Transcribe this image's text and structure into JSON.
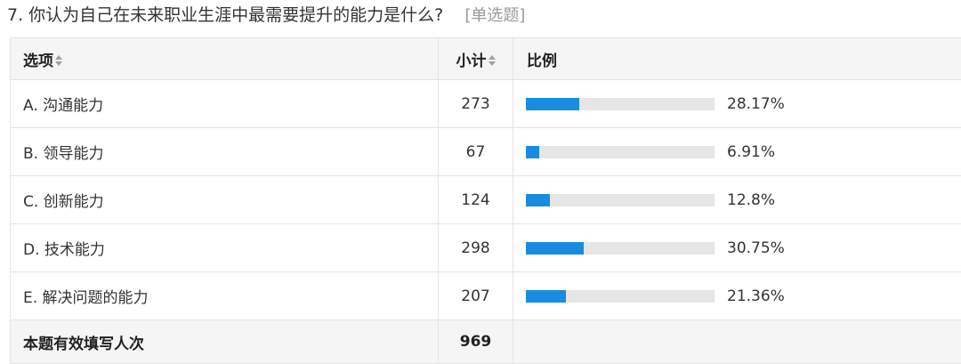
{
  "question": {
    "title": "7. 你认为自己在未来职业生涯中最需要提升的能力是什么?",
    "type_label": "[单选题]"
  },
  "table": {
    "headers": {
      "option": "选项",
      "count": "小计",
      "ratio": "比例"
    },
    "rows": [
      {
        "option": "A. 沟通能力",
        "count": "273",
        "percent": "28.17%",
        "fraction": 0.2817
      },
      {
        "option": "B. 领导能力",
        "count": "67",
        "percent": "6.91%",
        "fraction": 0.0691
      },
      {
        "option": "C. 创新能力",
        "count": "124",
        "percent": "12.8%",
        "fraction": 0.128
      },
      {
        "option": "D. 技术能力",
        "count": "298",
        "percent": "30.75%",
        "fraction": 0.3075
      },
      {
        "option": "E. 解决问题的能力",
        "count": "207",
        "percent": "21.36%",
        "fraction": 0.2136
      }
    ],
    "footer": {
      "label": "本题有效填写人次",
      "total": "969"
    }
  },
  "colors": {
    "bar_fill": "#1a8ce0",
    "bar_track": "#e6e6e6",
    "header_bg": "#f5f5f5",
    "type_label": "#9a9a9a"
  },
  "icons": {
    "sort": "sort-icon"
  }
}
